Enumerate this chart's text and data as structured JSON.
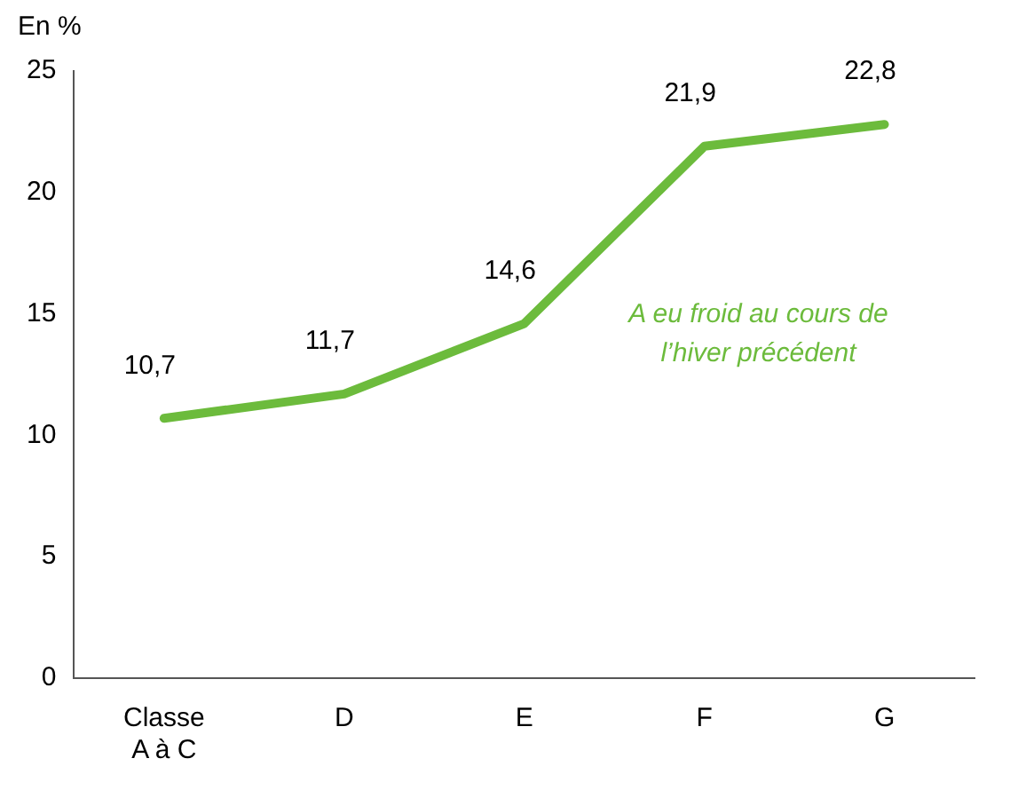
{
  "chart_data": {
    "type": "line",
    "ylabel": "En %",
    "categories": [
      "Classe\nA à C",
      "D",
      "E",
      "F",
      "G"
    ],
    "series": [
      {
        "name": "A eu froid au cours de l’hiver précédent",
        "color": "#6cbb3c",
        "values": [
          10.7,
          11.7,
          14.6,
          21.9,
          22.8
        ],
        "value_labels": [
          "10,7",
          "11,7",
          "14,6",
          "21,9",
          "22,8"
        ]
      }
    ],
    "ylim": [
      0,
      25
    ],
    "yticks": [
      0,
      5,
      10,
      15,
      20,
      25
    ],
    "grid": false,
    "legend": false,
    "marker": "none",
    "line_style": "solid"
  }
}
